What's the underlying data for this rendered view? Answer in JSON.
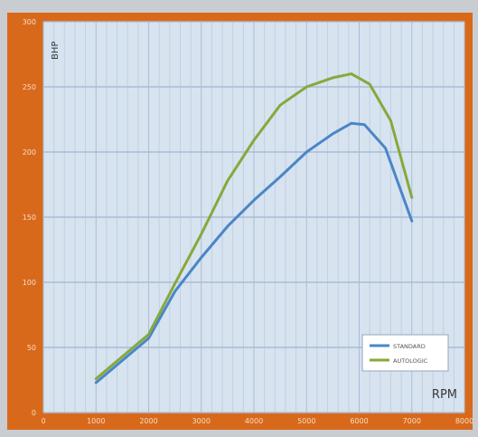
{
  "colors": {
    "frame": "#d9691a",
    "plot_bg": "#d8e3f0",
    "major_grid": "#a9bdd6",
    "minor_grid": "#bfd0e3",
    "standard": "#4a86c8",
    "autologic": "#86a93b",
    "outer_bg": "#c9ccd1",
    "tick_text": "#f2ddc9"
  },
  "chart_data": {
    "type": "line",
    "xlabel": "RPM",
    "ylabel": "BHP",
    "xlim": [
      0,
      8000
    ],
    "ylim": [
      0,
      300
    ],
    "xticks": [
      0,
      1000,
      2000,
      3000,
      4000,
      5000,
      6000,
      7000,
      8000
    ],
    "xtick_labels": [
      "0",
      "1000",
      "2000",
      "3000",
      "4000",
      "5000",
      "6000",
      "7000",
      "8000"
    ],
    "yticks": [
      0,
      50,
      100,
      150,
      200,
      250,
      300
    ],
    "ytick_labels": [
      "0",
      "50",
      "100",
      "150",
      "200",
      "250",
      "300"
    ],
    "grid": true,
    "legend_position": "bottom-right",
    "series": [
      {
        "name": "STANDARD",
        "color": "#4a86c8",
        "points": [
          [
            1000,
            23
          ],
          [
            1500,
            40
          ],
          [
            2000,
            57
          ],
          [
            2500,
            93
          ],
          [
            3000,
            119
          ],
          [
            3500,
            143
          ],
          [
            4000,
            163
          ],
          [
            4500,
            181
          ],
          [
            5000,
            200
          ],
          [
            5500,
            214
          ],
          [
            5850,
            222
          ],
          [
            6100,
            221
          ],
          [
            6500,
            203
          ],
          [
            7000,
            147
          ]
        ]
      },
      {
        "name": "AUTOLOGIC",
        "color": "#86a93b",
        "points": [
          [
            1000,
            26
          ],
          [
            1500,
            43
          ],
          [
            2000,
            60
          ],
          [
            2500,
            99
          ],
          [
            3000,
            137
          ],
          [
            3500,
            178
          ],
          [
            4000,
            209
          ],
          [
            4500,
            236
          ],
          [
            5000,
            250
          ],
          [
            5500,
            257
          ],
          [
            5850,
            260
          ],
          [
            6200,
            252
          ],
          [
            6600,
            224
          ],
          [
            7000,
            165
          ]
        ]
      }
    ]
  }
}
